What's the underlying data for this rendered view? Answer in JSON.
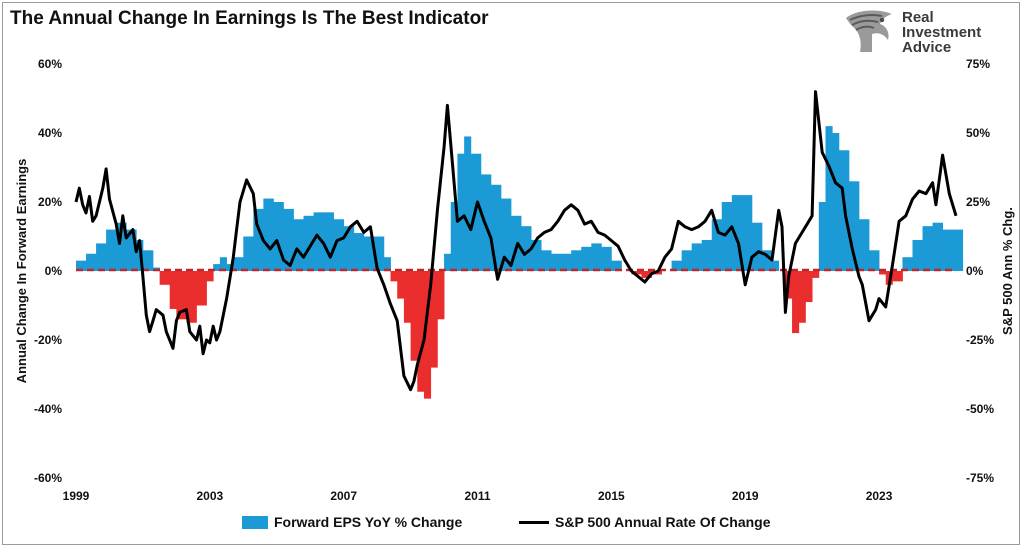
{
  "title": "The Annual Change In Earnings Is The Best Indicator",
  "logo": {
    "line1": "Real",
    "line2": "Investment",
    "line3": "Advice",
    "icon": "eagle-head-icon"
  },
  "legend": {
    "bars_label": "Forward EPS YoY % Change",
    "line_label": "S&P 500 Annual Rate Of Change"
  },
  "colors": {
    "positive": "#1b9ad6",
    "negative": "#ea2d2d",
    "line": "#000000",
    "zero": "#c0272d"
  },
  "chart_data": {
    "type": "bar",
    "title": "The Annual Change In Earnings Is The Best Indicator",
    "xlabel": "",
    "ylabel": "Annual Change In Forward Earnings",
    "y2label": "S&P 500  Ann % Chg.",
    "xlim": [
      1999,
      2025.3
    ],
    "ylim": [
      -60,
      60
    ],
    "y2lim": [
      -75,
      75
    ],
    "x_ticks": [
      "1999",
      "2003",
      "2007",
      "2011",
      "2015",
      "2019",
      "2023"
    ],
    "y_ticks": [
      "60%",
      "40%",
      "20%",
      "0%",
      "-20%",
      "-40%",
      "-60%"
    ],
    "y2_ticks": [
      "75%",
      "50%",
      "25%",
      "0%",
      "-25%",
      "-50%",
      "-75%"
    ],
    "grid": false,
    "legend_position": "bottom",
    "series": [
      {
        "name": "Forward EPS YoY % Change",
        "type": "bar",
        "axis": "left",
        "points": [
          [
            1999.0,
            3
          ],
          [
            1999.3,
            5
          ],
          [
            1999.6,
            8
          ],
          [
            1999.9,
            12
          ],
          [
            2000.2,
            14
          ],
          [
            2000.5,
            12
          ],
          [
            2000.8,
            9
          ],
          [
            2001.0,
            6
          ],
          [
            2001.3,
            1
          ],
          [
            2001.5,
            -4
          ],
          [
            2001.8,
            -11
          ],
          [
            2002.0,
            -14
          ],
          [
            2002.3,
            -15
          ],
          [
            2002.6,
            -10
          ],
          [
            2002.9,
            -3
          ],
          [
            2003.1,
            2
          ],
          [
            2003.3,
            4
          ],
          [
            2003.5,
            2
          ],
          [
            2003.7,
            4
          ],
          [
            2004.0,
            10
          ],
          [
            2004.3,
            18
          ],
          [
            2004.6,
            21
          ],
          [
            2004.9,
            20
          ],
          [
            2005.2,
            18
          ],
          [
            2005.5,
            15
          ],
          [
            2005.8,
            16
          ],
          [
            2006.1,
            17
          ],
          [
            2006.4,
            17
          ],
          [
            2006.7,
            15
          ],
          [
            2007.0,
            13
          ],
          [
            2007.3,
            11
          ],
          [
            2007.6,
            10
          ],
          [
            2007.9,
            10
          ],
          [
            2008.2,
            4
          ],
          [
            2008.4,
            -3
          ],
          [
            2008.6,
            -8
          ],
          [
            2008.8,
            -15
          ],
          [
            2009.0,
            -26
          ],
          [
            2009.2,
            -35
          ],
          [
            2009.4,
            -37
          ],
          [
            2009.6,
            -28
          ],
          [
            2009.8,
            -14
          ],
          [
            2010.0,
            5
          ],
          [
            2010.2,
            20
          ],
          [
            2010.4,
            34
          ],
          [
            2010.6,
            39
          ],
          [
            2010.8,
            34
          ],
          [
            2011.1,
            28
          ],
          [
            2011.4,
            25
          ],
          [
            2011.7,
            21
          ],
          [
            2012.0,
            16
          ],
          [
            2012.3,
            13
          ],
          [
            2012.6,
            9
          ],
          [
            2012.9,
            6
          ],
          [
            2013.2,
            5
          ],
          [
            2013.5,
            5
          ],
          [
            2013.8,
            6
          ],
          [
            2014.1,
            7
          ],
          [
            2014.4,
            8
          ],
          [
            2014.7,
            7
          ],
          [
            2015.0,
            3
          ],
          [
            2015.3,
            0
          ],
          [
            2015.6,
            -1
          ],
          [
            2015.9,
            -2
          ],
          [
            2016.2,
            -1
          ],
          [
            2016.5,
            0
          ],
          [
            2016.8,
            3
          ],
          [
            2017.1,
            6
          ],
          [
            2017.4,
            8
          ],
          [
            2017.7,
            9
          ],
          [
            2018.0,
            15
          ],
          [
            2018.3,
            20
          ],
          [
            2018.6,
            22
          ],
          [
            2018.9,
            22
          ],
          [
            2019.2,
            14
          ],
          [
            2019.5,
            6
          ],
          [
            2019.8,
            3
          ],
          [
            2020.0,
            0
          ],
          [
            2020.2,
            -8
          ],
          [
            2020.4,
            -18
          ],
          [
            2020.6,
            -15
          ],
          [
            2020.8,
            -9
          ],
          [
            2021.0,
            -2
          ],
          [
            2021.2,
            20
          ],
          [
            2021.4,
            42
          ],
          [
            2021.6,
            40
          ],
          [
            2021.8,
            35
          ],
          [
            2022.1,
            26
          ],
          [
            2022.4,
            15
          ],
          [
            2022.7,
            6
          ],
          [
            2023.0,
            -1
          ],
          [
            2023.2,
            -4
          ],
          [
            2023.4,
            -3
          ],
          [
            2023.7,
            4
          ],
          [
            2024.0,
            9
          ],
          [
            2024.3,
            13
          ],
          [
            2024.6,
            14
          ],
          [
            2024.9,
            12
          ],
          [
            2025.2,
            12
          ]
        ]
      },
      {
        "name": "S&P 500 Annual Rate Of Change",
        "type": "line",
        "axis": "right",
        "points": [
          [
            1999.0,
            25
          ],
          [
            1999.1,
            30
          ],
          [
            1999.2,
            24
          ],
          [
            1999.3,
            21
          ],
          [
            1999.4,
            27
          ],
          [
            1999.5,
            18
          ],
          [
            1999.6,
            20
          ],
          [
            1999.8,
            30
          ],
          [
            1999.9,
            37
          ],
          [
            2000.0,
            26
          ],
          [
            2000.2,
            17
          ],
          [
            2000.3,
            10
          ],
          [
            2000.4,
            20
          ],
          [
            2000.5,
            12
          ],
          [
            2000.7,
            15
          ],
          [
            2000.8,
            7
          ],
          [
            2000.9,
            11
          ],
          [
            2001.0,
            -2
          ],
          [
            2001.1,
            -16
          ],
          [
            2001.2,
            -22
          ],
          [
            2001.3,
            -18
          ],
          [
            2001.4,
            -14
          ],
          [
            2001.6,
            -16
          ],
          [
            2001.7,
            -22
          ],
          [
            2001.9,
            -28
          ],
          [
            2002.0,
            -18
          ],
          [
            2002.1,
            -15
          ],
          [
            2002.3,
            -14
          ],
          [
            2002.4,
            -22
          ],
          [
            2002.6,
            -25
          ],
          [
            2002.7,
            -20
          ],
          [
            2002.8,
            -30
          ],
          [
            2002.9,
            -25
          ],
          [
            2003.0,
            -26
          ],
          [
            2003.1,
            -20
          ],
          [
            2003.2,
            -25
          ],
          [
            2003.3,
            -22
          ],
          [
            2003.5,
            -10
          ],
          [
            2003.7,
            5
          ],
          [
            2003.8,
            15
          ],
          [
            2003.9,
            25
          ],
          [
            2004.0,
            29
          ],
          [
            2004.1,
            33
          ],
          [
            2004.3,
            28
          ],
          [
            2004.4,
            17
          ],
          [
            2004.6,
            11
          ],
          [
            2004.8,
            8
          ],
          [
            2005.0,
            11
          ],
          [
            2005.2,
            4
          ],
          [
            2005.4,
            2
          ],
          [
            2005.6,
            8
          ],
          [
            2005.8,
            5
          ],
          [
            2006.0,
            9
          ],
          [
            2006.2,
            13
          ],
          [
            2006.4,
            10
          ],
          [
            2006.6,
            5
          ],
          [
            2006.8,
            11
          ],
          [
            2007.0,
            12
          ],
          [
            2007.2,
            16
          ],
          [
            2007.4,
            18
          ],
          [
            2007.6,
            14
          ],
          [
            2007.8,
            16
          ],
          [
            2008.0,
            1
          ],
          [
            2008.2,
            -5
          ],
          [
            2008.4,
            -12
          ],
          [
            2008.6,
            -18
          ],
          [
            2008.8,
            -38
          ],
          [
            2009.0,
            -43
          ],
          [
            2009.1,
            -40
          ],
          [
            2009.2,
            -34
          ],
          [
            2009.4,
            -25
          ],
          [
            2009.6,
            -5
          ],
          [
            2009.8,
            22
          ],
          [
            2010.0,
            45
          ],
          [
            2010.1,
            60
          ],
          [
            2010.3,
            32
          ],
          [
            2010.4,
            18
          ],
          [
            2010.6,
            20
          ],
          [
            2010.8,
            15
          ],
          [
            2011.0,
            25
          ],
          [
            2011.2,
            18
          ],
          [
            2011.4,
            12
          ],
          [
            2011.6,
            -3
          ],
          [
            2011.8,
            5
          ],
          [
            2012.0,
            2
          ],
          [
            2012.2,
            10
          ],
          [
            2012.4,
            6
          ],
          [
            2012.6,
            8
          ],
          [
            2012.8,
            12
          ],
          [
            2013.0,
            14
          ],
          [
            2013.2,
            15
          ],
          [
            2013.4,
            18
          ],
          [
            2013.6,
            22
          ],
          [
            2013.8,
            24
          ],
          [
            2014.0,
            22
          ],
          [
            2014.2,
            17
          ],
          [
            2014.4,
            18
          ],
          [
            2014.6,
            14
          ],
          [
            2014.8,
            13
          ],
          [
            2015.0,
            11
          ],
          [
            2015.2,
            9
          ],
          [
            2015.4,
            4
          ],
          [
            2015.6,
            0
          ],
          [
            2015.8,
            -2
          ],
          [
            2016.0,
            -4
          ],
          [
            2016.2,
            -1
          ],
          [
            2016.4,
            0
          ],
          [
            2016.6,
            5
          ],
          [
            2016.8,
            8
          ],
          [
            2017.0,
            18
          ],
          [
            2017.2,
            16
          ],
          [
            2017.4,
            15
          ],
          [
            2017.6,
            16
          ],
          [
            2017.8,
            18
          ],
          [
            2018.0,
            22
          ],
          [
            2018.2,
            14
          ],
          [
            2018.4,
            13
          ],
          [
            2018.6,
            16
          ],
          [
            2018.8,
            10
          ],
          [
            2019.0,
            -5
          ],
          [
            2019.2,
            5
          ],
          [
            2019.4,
            7
          ],
          [
            2019.6,
            6
          ],
          [
            2019.8,
            4
          ],
          [
            2020.0,
            22
          ],
          [
            2020.1,
            16
          ],
          [
            2020.2,
            -15
          ],
          [
            2020.3,
            -2
          ],
          [
            2020.5,
            10
          ],
          [
            2020.7,
            14
          ],
          [
            2020.9,
            18
          ],
          [
            2021.0,
            20
          ],
          [
            2021.1,
            65
          ],
          [
            2021.3,
            43
          ],
          [
            2021.5,
            38
          ],
          [
            2021.7,
            32
          ],
          [
            2021.9,
            30
          ],
          [
            2022.0,
            20
          ],
          [
            2022.2,
            8
          ],
          [
            2022.4,
            -2
          ],
          [
            2022.5,
            -5
          ],
          [
            2022.7,
            -18
          ],
          [
            2022.9,
            -14
          ],
          [
            2023.0,
            -10
          ],
          [
            2023.2,
            -13
          ],
          [
            2023.4,
            2
          ],
          [
            2023.6,
            18
          ],
          [
            2023.8,
            20
          ],
          [
            2024.0,
            26
          ],
          [
            2024.2,
            29
          ],
          [
            2024.4,
            28
          ],
          [
            2024.6,
            32
          ],
          [
            2024.7,
            24
          ],
          [
            2024.9,
            42
          ],
          [
            2025.1,
            28
          ],
          [
            2025.3,
            20
          ]
        ]
      }
    ]
  }
}
